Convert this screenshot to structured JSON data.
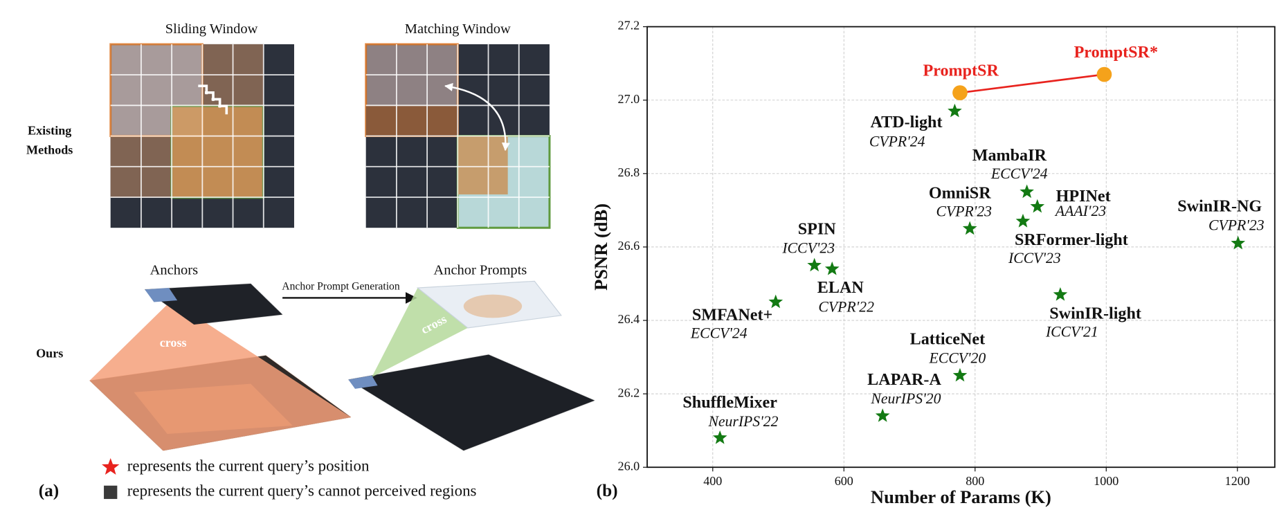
{
  "figure_a": {
    "panel_label": "(a)",
    "sliding_window": "Sliding Window",
    "matching_window": "Matching Window",
    "existing_methods": [
      "Existing",
      "Methods"
    ],
    "anchors": "Anchors",
    "anchor_prompts": "Anchor Prompts",
    "arrow_label": "Anchor Prompt Generation",
    "cross_labels": [
      "cross",
      "cross"
    ],
    "ours": "Ours",
    "legend": [
      "represents the current query’s position",
      "represents the current query’s cannot perceived regions"
    ]
  },
  "chart_data": {
    "type": "scatter",
    "panel_label": "(b)",
    "xlabel": "Number of Params (K)",
    "ylabel": "PSNR (dB)",
    "xlim": [
      300,
      1257
    ],
    "ylim": [
      26.0,
      27.2
    ],
    "xticks": [
      400,
      600,
      800,
      1000,
      1200
    ],
    "yticks": [
      {
        "value": 26.0,
        "label": "26.0"
      },
      26.2,
      26.4,
      26.6,
      26.8,
      {
        "value": 27.0,
        "label": "27.0"
      },
      27.2
    ],
    "grid": true,
    "series": [
      {
        "marker": "star",
        "color": "#137a13",
        "labels": [
          "ShuffleMixer",
          "LAPAR-A",
          "LatticeNet",
          "SMFANet+",
          "SPIN",
          "ELAN",
          "OmniSR",
          "SRFormer-light",
          "MambaIR",
          "HPINet",
          "SwinIR-light",
          "SwinIR-NG",
          "ATD-light"
        ],
        "sublabels": [
          "NeurIPS'22",
          "NeurIPS'20",
          "ECCV'20",
          "ECCV'24",
          "ICCV'23",
          "CVPR'22",
          "CVPR'23",
          "ICCV'23",
          "ECCV'24",
          "AAAI'23",
          "ICCV'21",
          "CVPR'23",
          "CVPR'24"
        ],
        "x": [
          411,
          659,
          777,
          496,
          555,
          582,
          792,
          873,
          879,
          895,
          930,
          1201,
          769
        ],
        "y": [
          26.08,
          26.14,
          26.25,
          26.45,
          26.55,
          26.54,
          26.65,
          26.67,
          26.75,
          26.71,
          26.47,
          26.61,
          26.97
        ]
      },
      {
        "marker": "circle",
        "color": "#f5a21b",
        "line_color": "#e8231e",
        "labels": [
          "PromptSR",
          "PromptSR*"
        ],
        "x": [
          777,
          997
        ],
        "y": [
          27.02,
          27.07
        ]
      }
    ]
  }
}
